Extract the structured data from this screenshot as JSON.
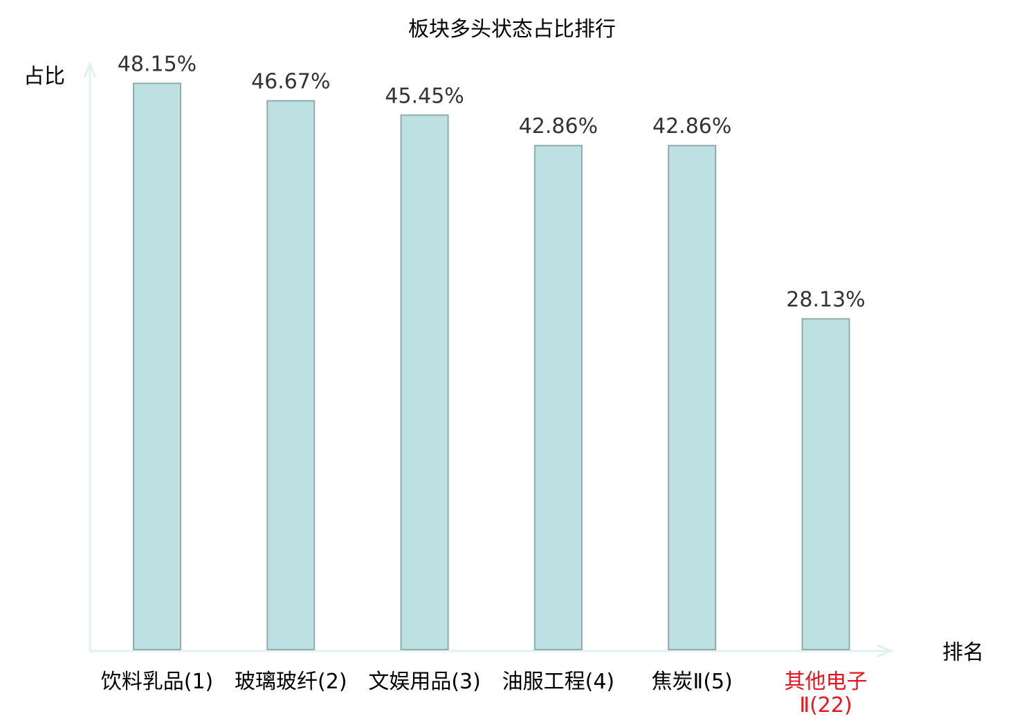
{
  "chart_data": {
    "type": "bar",
    "title": "板块多头状态占比排行",
    "xlabel": "排名",
    "ylabel": "占比",
    "categories": [
      "饮料乳品(1)",
      "玻璃玻纤(2)",
      "文娱用品(3)",
      "油服工程(4)",
      "焦炭Ⅱ(5)",
      "其他电子Ⅱ(22)"
    ],
    "category_lines": [
      [
        "饮料乳品(1)"
      ],
      [
        "玻璃玻纤(2)"
      ],
      [
        "文娱用品(3)"
      ],
      [
        "油服工程(4)"
      ],
      [
        "焦炭Ⅱ(5)"
      ],
      [
        "其他电子",
        "Ⅱ(22)"
      ]
    ],
    "values": [
      48.15,
      46.67,
      45.45,
      42.86,
      42.86,
      28.13
    ],
    "value_labels": [
      "48.15%",
      "46.67%",
      "45.45%",
      "42.86%",
      "42.86%",
      "28.13%"
    ],
    "highlight_index": 5,
    "ylim": [
      0,
      50
    ],
    "grid": false,
    "legend": "none",
    "colors": {
      "bar_fill": "#bde0e3",
      "bar_stroke": "#8fabad",
      "axis": "#dff2ef",
      "text": "#000000",
      "value_label": "#333333",
      "highlight": "#e8141e"
    }
  }
}
